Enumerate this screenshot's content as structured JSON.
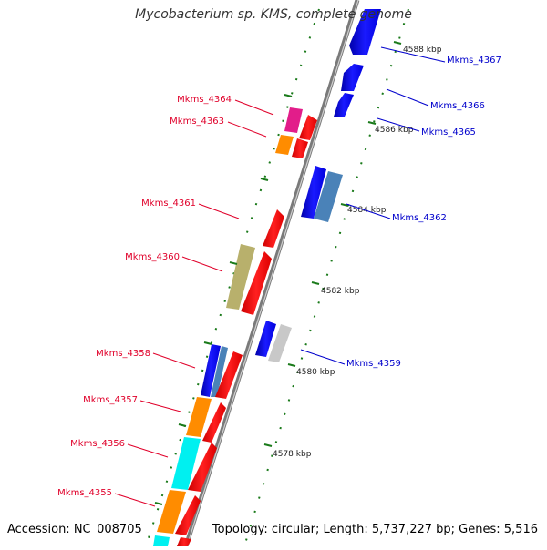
{
  "title": "Mycobacterium sp. KMS, complete genome",
  "accession": "Accession: NC_008705",
  "topology": "Topology: circular; Length: 5,737,227 bp; Genes: 5,516",
  "colors": {
    "backbone": "#8c8c8c",
    "forward_gene": "#ff0000",
    "reverse_gene": "#0000ff",
    "tick": "#1a7a1a"
  },
  "scale_labels": [
    "4588 kbp",
    "4586 kbp",
    "4584 kbp",
    "4582 kbp",
    "4580 kbp",
    "4578 kbp"
  ],
  "genes_left": [
    {
      "label": "Mkms_4364",
      "color": "#e0002a"
    },
    {
      "label": "Mkms_4363",
      "color": "#e0002a"
    },
    {
      "label": "Mkms_4361",
      "color": "#e0002a"
    },
    {
      "label": "Mkms_4360",
      "color": "#e0002a"
    },
    {
      "label": "Mkms_4358",
      "color": "#e0002a"
    },
    {
      "label": "Mkms_4357",
      "color": "#e0002a"
    },
    {
      "label": "Mkms_4356",
      "color": "#e0002a"
    },
    {
      "label": "Mkms_4355",
      "color": "#e0002a"
    }
  ],
  "genes_right": [
    {
      "label": "Mkms_4367",
      "color": "#0000cc"
    },
    {
      "label": "Mkms_4366",
      "color": "#0000cc"
    },
    {
      "label": "Mkms_4365",
      "color": "#0000cc"
    },
    {
      "label": "Mkms_4362",
      "color": "#0000cc"
    },
    {
      "label": "Mkms_4359",
      "color": "#0000cc"
    }
  ]
}
